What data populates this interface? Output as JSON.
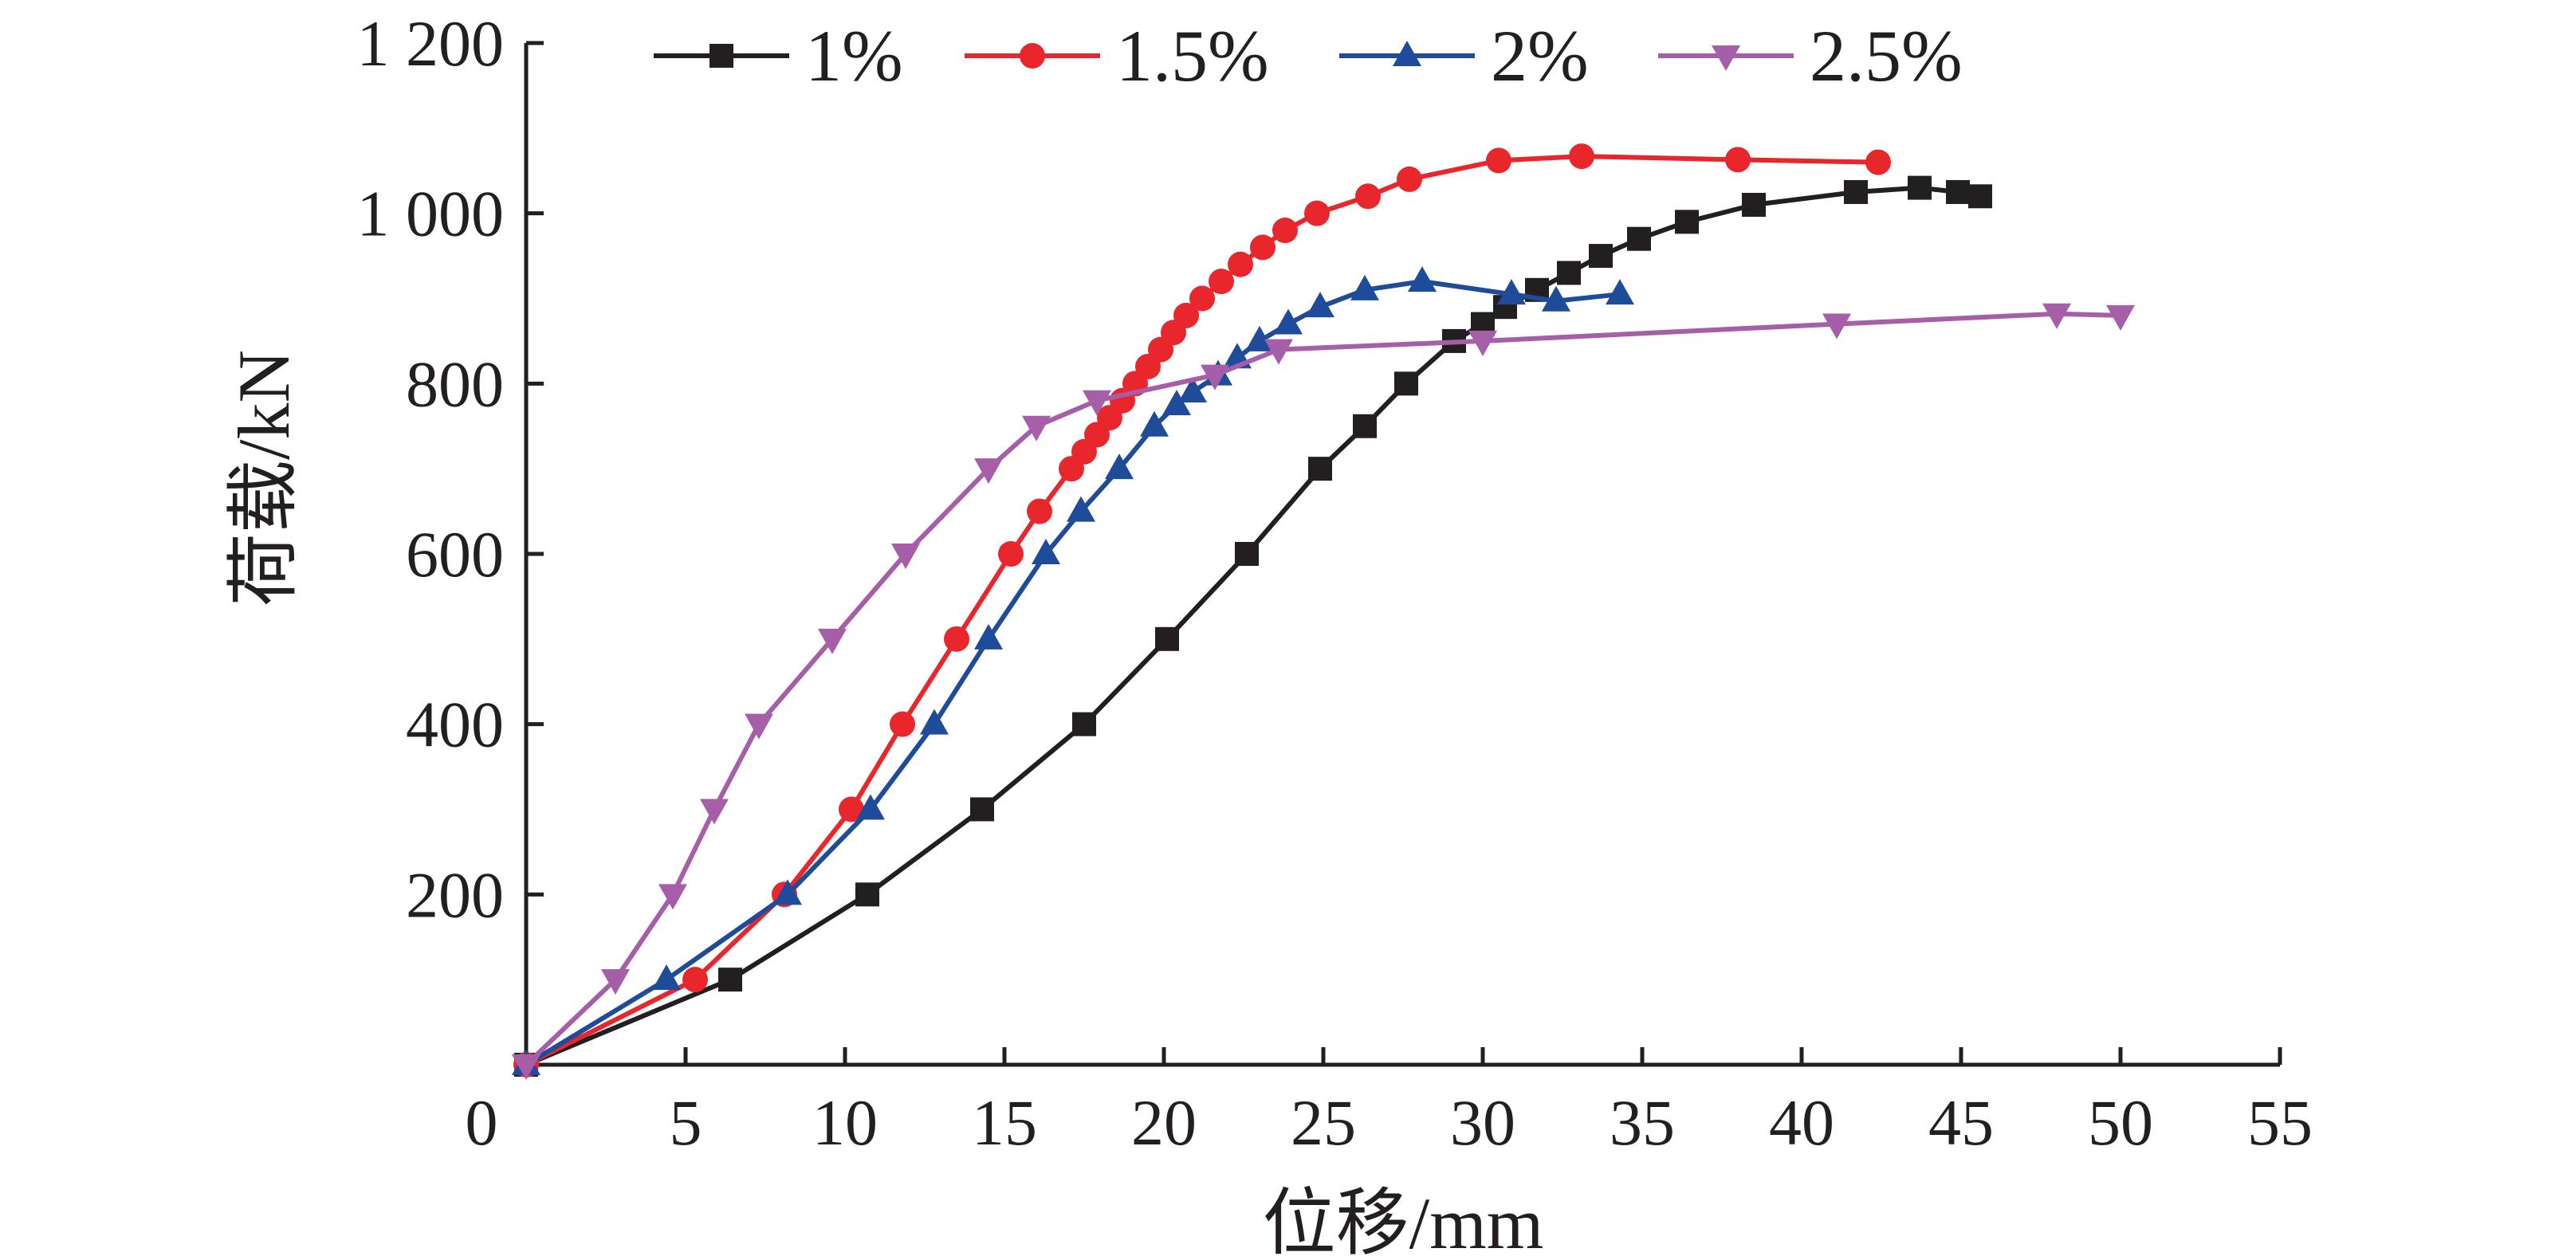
{
  "chart_data": {
    "type": "line",
    "title": "",
    "xlabel": "位移/mm",
    "ylabel": "荷载/kN",
    "xlim": [
      0,
      55
    ],
    "ylim": [
      0,
      1200
    ],
    "x_ticks": [
      0,
      5,
      10,
      15,
      20,
      25,
      30,
      35,
      40,
      45,
      50,
      55
    ],
    "x_tick_labels": [
      "0",
      "5",
      "10",
      "15",
      "20",
      "25",
      "30",
      "35",
      "40",
      "45",
      "50",
      "55"
    ],
    "y_ticks": [
      200,
      400,
      600,
      800,
      1000,
      1200
    ],
    "y_tick_labels": [
      "200",
      "400",
      "600",
      "800",
      "1 000",
      "1 200"
    ],
    "grid": false,
    "legend_position": "top",
    "series": [
      {
        "name": "1%",
        "color": "#231f20",
        "marker": "square",
        "points": [
          [
            0,
            0
          ],
          [
            6.4,
            100
          ],
          [
            10.7,
            200
          ],
          [
            14.3,
            300
          ],
          [
            17.5,
            400
          ],
          [
            20.1,
            500
          ],
          [
            22.6,
            600
          ],
          [
            24.9,
            700
          ],
          [
            26.3,
            750
          ],
          [
            27.6,
            800
          ],
          [
            29.1,
            850
          ],
          [
            30,
            870
          ],
          [
            30.7,
            890
          ],
          [
            31.7,
            910
          ],
          [
            32.7,
            930
          ],
          [
            33.7,
            950
          ],
          [
            34.9,
            970
          ],
          [
            36.4,
            990
          ],
          [
            38.5,
            1010
          ],
          [
            41.7,
            1025
          ],
          [
            43.7,
            1030
          ],
          [
            44.9,
            1025
          ],
          [
            45.6,
            1020
          ]
        ]
      },
      {
        "name": "1.5%",
        "color": "#e8262b",
        "marker": "circle",
        "points": [
          [
            0,
            0
          ],
          [
            5.3,
            100
          ],
          [
            8.1,
            200
          ],
          [
            10.2,
            300
          ],
          [
            11.8,
            400
          ],
          [
            13.5,
            500
          ],
          [
            15.2,
            600
          ],
          [
            16.1,
            650
          ],
          [
            17.1,
            700
          ],
          [
            17.5,
            720
          ],
          [
            17.9,
            740
          ],
          [
            18.3,
            760
          ],
          [
            18.7,
            780
          ],
          [
            19.1,
            800
          ],
          [
            19.5,
            820
          ],
          [
            19.9,
            840
          ],
          [
            20.3,
            860
          ],
          [
            20.7,
            880
          ],
          [
            21.2,
            900
          ],
          [
            21.8,
            920
          ],
          [
            22.4,
            940
          ],
          [
            23.1,
            960
          ],
          [
            23.8,
            980
          ],
          [
            24.8,
            1000
          ],
          [
            26.4,
            1020
          ],
          [
            27.7,
            1040
          ],
          [
            30.5,
            1062
          ],
          [
            33.1,
            1067
          ],
          [
            38,
            1063
          ],
          [
            42.4,
            1060
          ]
        ]
      },
      {
        "name": "2%",
        "color": "#1e4b9a",
        "marker": "triangle-up",
        "points": [
          [
            0,
            0
          ],
          [
            4.4,
            100
          ],
          [
            8.2,
            200
          ],
          [
            10.8,
            300
          ],
          [
            12.8,
            400
          ],
          [
            14.5,
            500
          ],
          [
            16.3,
            600
          ],
          [
            17.4,
            650
          ],
          [
            18.6,
            700
          ],
          [
            19.7,
            750
          ],
          [
            20.4,
            775
          ],
          [
            20.9,
            790
          ],
          [
            21.7,
            810
          ],
          [
            22.3,
            830
          ],
          [
            23,
            850
          ],
          [
            23.9,
            870
          ],
          [
            24.9,
            890
          ],
          [
            26.3,
            910
          ],
          [
            28.1,
            920
          ],
          [
            30.9,
            905
          ],
          [
            32.3,
            897
          ],
          [
            34.3,
            905
          ]
        ]
      },
      {
        "name": "2.5%",
        "color": "#a55ea7",
        "marker": "triangle-down",
        "points": [
          [
            0,
            0
          ],
          [
            2.8,
            100
          ],
          [
            4.6,
            200
          ],
          [
            5.9,
            300
          ],
          [
            7.3,
            400
          ],
          [
            9.6,
            500
          ],
          [
            11.9,
            600
          ],
          [
            14.5,
            700
          ],
          [
            16,
            750
          ],
          [
            17.9,
            780
          ],
          [
            21.6,
            810
          ],
          [
            23.6,
            840
          ],
          [
            30,
            850
          ],
          [
            41.1,
            870
          ],
          [
            48,
            882
          ],
          [
            50,
            880
          ]
        ]
      }
    ]
  }
}
